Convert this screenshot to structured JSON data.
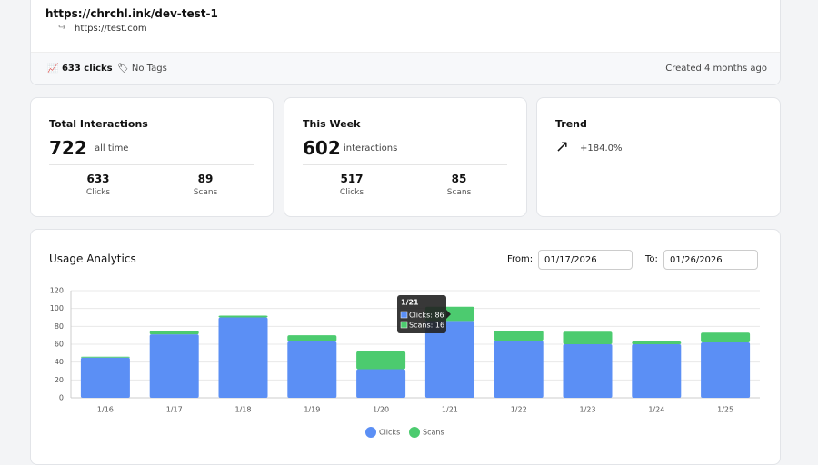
{
  "link": {
    "short_url": "https://chrchl.ink/dev-test-1",
    "target_url": "https://test.com",
    "clicks": "633 clicks",
    "tags": "No Tags",
    "created": "Created 4 months ago"
  },
  "stats": [
    {
      "title": "Total Interactions",
      "value": 722,
      "note": "all time",
      "a_value": 633,
      "a_label": "Clicks",
      "b_value": 89,
      "b_label": "Scans"
    },
    {
      "title": "This Week",
      "value": 602,
      "note": "interactions",
      "a_value": 517,
      "a_label": "Clicks",
      "b_value": 85,
      "b_label": "Scans"
    },
    {
      "title": "Trend",
      "change": "+184.0%"
    }
  ],
  "analytics": {
    "title": "Usage Analytics",
    "from_label": "From:",
    "from_date": "01/17/2026",
    "to_label": "To:",
    "to_date": "01/26/2026"
  },
  "chart_data": {
    "type": "stacked-bar",
    "categories": [
      "1/16",
      "1/17",
      "1/18",
      "1/19",
      "1/20",
      "1/21",
      "1/22",
      "1/23",
      "1/24",
      "1/25"
    ],
    "series": [
      {
        "name": "Clicks",
        "color": "#5b8ff5",
        "values": [
          45,
          71,
          90,
          63,
          32,
          86,
          64,
          60,
          60,
          62
        ]
      },
      {
        "name": "Scans",
        "color": "#4ccb6f",
        "values": [
          1,
          4,
          2,
          7,
          20,
          16,
          11,
          14,
          3,
          11
        ]
      }
    ],
    "ylim": [
      0,
      120
    ],
    "yticks": [
      0,
      20,
      40,
      60,
      80,
      100,
      120
    ],
    "grid": true,
    "tooltip": {
      "title": "1/21",
      "lines": [
        "Clicks: 86",
        "Scans: 16"
      ]
    }
  }
}
